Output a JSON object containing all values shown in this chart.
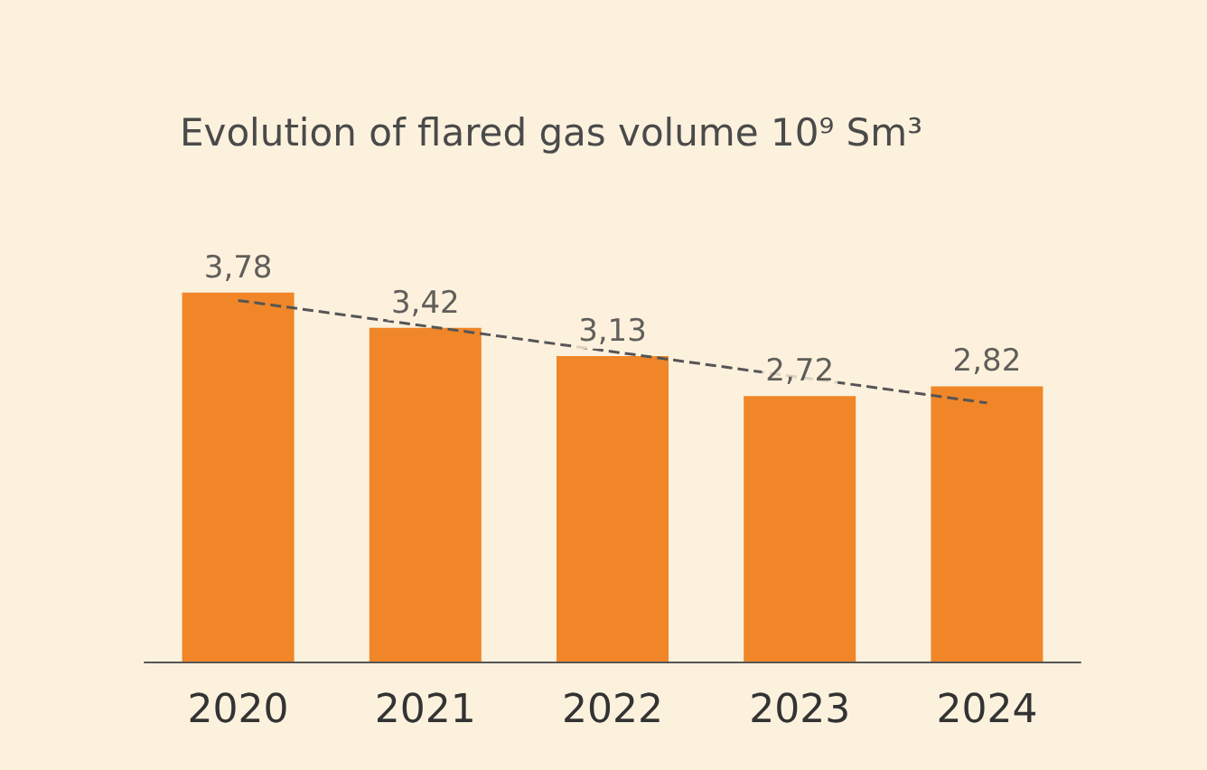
{
  "chart_data": {
    "type": "bar",
    "title": "Evolution of flared gas volume 10⁹ Sm³",
    "categories": [
      "2020",
      "2021",
      "2022",
      "2023",
      "2024"
    ],
    "series": [
      {
        "color": "#f08628",
        "values": [
          3.78,
          3.42,
          3.13,
          2.72,
          2.82
        ],
        "value_labels": [
          "3,78",
          "3,42",
          "3,13",
          "2,72",
          "2,82"
        ]
      },
      {
        "type": "line",
        "color": "#555555",
        "values": [
          3.7,
          null,
          null,
          null,
          2.65
        ],
        "line_style": "dashed",
        "marker": "none"
      }
    ],
    "grid": false
  }
}
